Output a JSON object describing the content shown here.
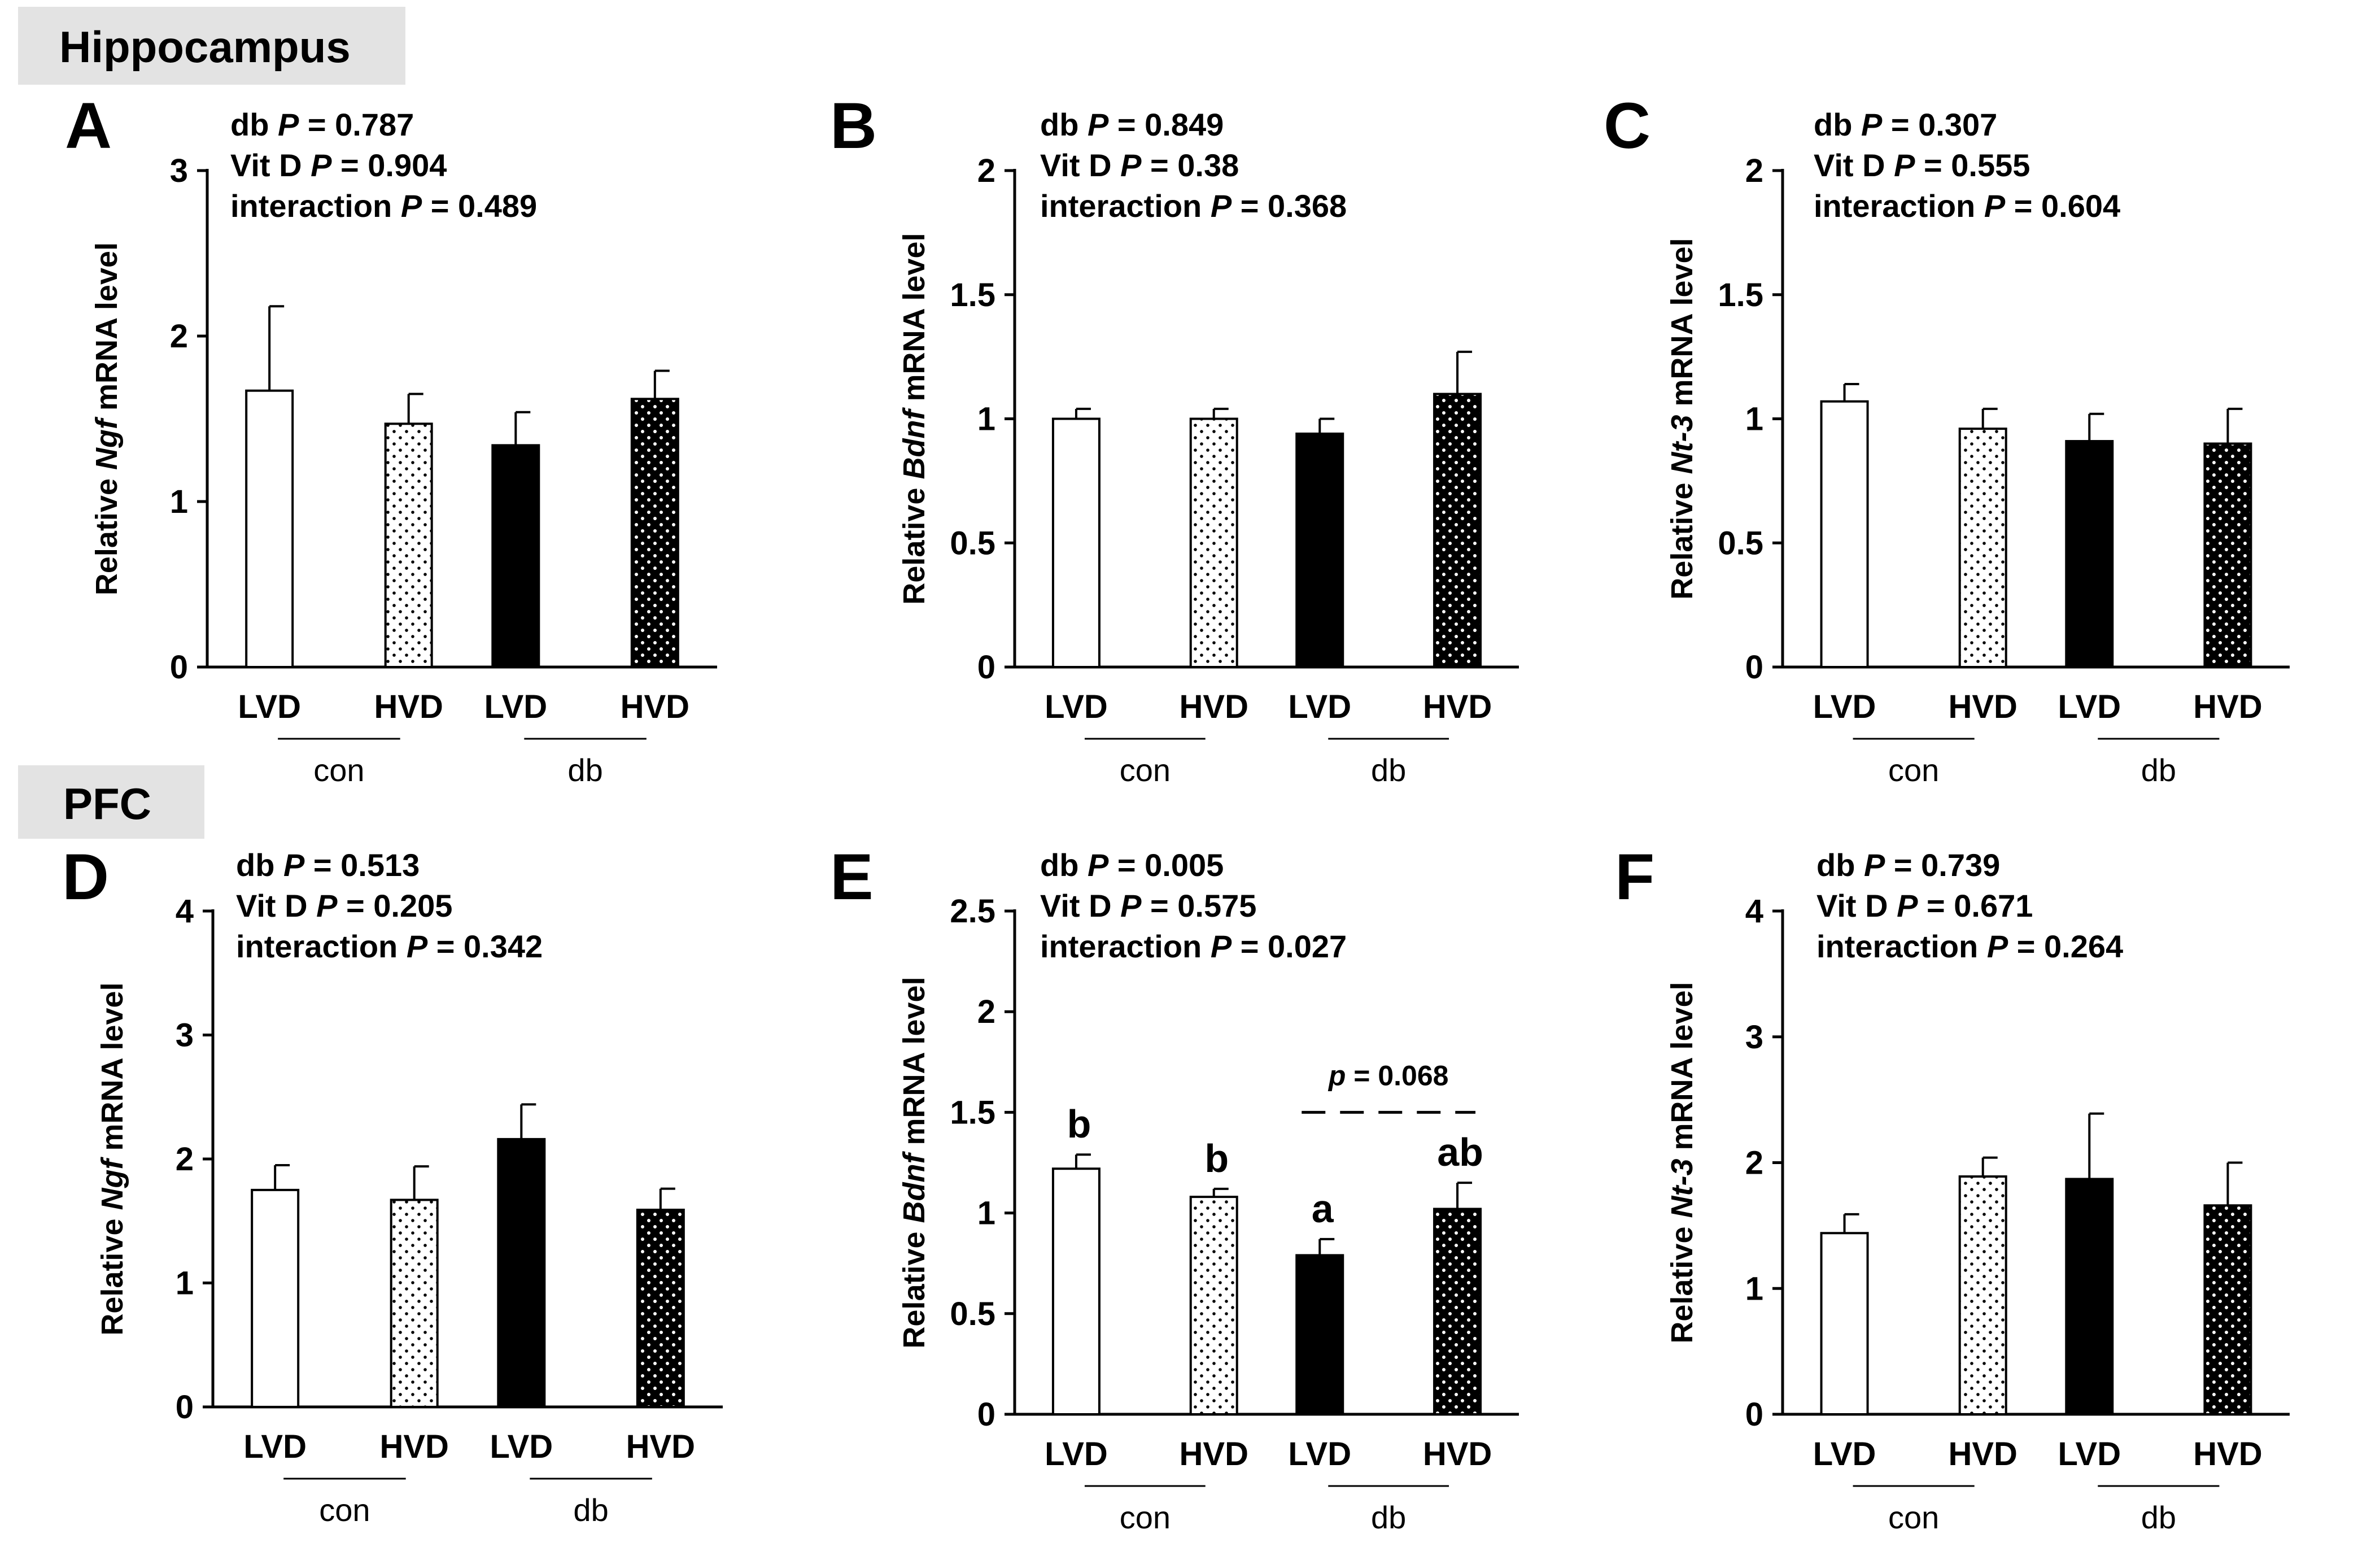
{
  "sections": [
    {
      "id": "hippocampus",
      "label": "Hippocampus"
    },
    {
      "id": "pfc",
      "label": "PFC"
    }
  ],
  "colors": {
    "lvd": "#ffffff",
    "hvd_con": "#ffffff",
    "db_lvd": "#000000",
    "db_hvd": "#000000",
    "axis": "#000000"
  },
  "chart_data": [
    {
      "panel": "A",
      "type": "bar",
      "section": "Hippocampus",
      "ylabel_pre": "Relative ",
      "ylabel_gene": "Ngf",
      "ylabel_post": " mRNA level",
      "ylim": [
        0,
        3
      ],
      "yticks": [
        0,
        1,
        2,
        3
      ],
      "ytick_labels": [
        "0",
        "1",
        "2",
        "3"
      ],
      "categories": [
        "LVD",
        "HVD",
        "LVD",
        "HVD"
      ],
      "groups": [
        {
          "label": "con",
          "members": [
            0,
            1
          ]
        },
        {
          "label": "db",
          "members": [
            2,
            3
          ]
        }
      ],
      "values": [
        1.67,
        1.47,
        1.34,
        1.62
      ],
      "errors": [
        0.51,
        0.18,
        0.2,
        0.17
      ],
      "stats": [
        {
          "pre": "db ",
          "p": "P",
          "post": " = 0.787"
        },
        {
          "pre": "Vit D ",
          "p": "P",
          "post": " = 0.904"
        },
        {
          "pre": "interaction ",
          "p": "P",
          "post": " = 0.489"
        }
      ],
      "letters": [],
      "comparison": null
    },
    {
      "panel": "B",
      "type": "bar",
      "section": "Hippocampus",
      "ylabel_pre": "Relative ",
      "ylabel_gene": "Bdnf",
      "ylabel_post": " mRNA level",
      "ylim": [
        0,
        2
      ],
      "yticks": [
        0,
        0.5,
        1,
        1.5,
        2
      ],
      "ytick_labels": [
        "0",
        "0.5",
        "1",
        "1.5",
        "2"
      ],
      "categories": [
        "LVD",
        "HVD",
        "LVD",
        "HVD"
      ],
      "groups": [
        {
          "label": "con",
          "members": [
            0,
            1
          ]
        },
        {
          "label": "db",
          "members": [
            2,
            3
          ]
        }
      ],
      "values": [
        1.0,
        1.0,
        0.94,
        1.1
      ],
      "errors": [
        0.04,
        0.04,
        0.06,
        0.17
      ],
      "stats": [
        {
          "pre": "db ",
          "p": "P",
          "post": " = 0.849"
        },
        {
          "pre": "Vit D ",
          "p": "P",
          "post": " = 0.38"
        },
        {
          "pre": "interaction ",
          "p": "P",
          "post": " = 0.368"
        }
      ],
      "letters": [],
      "comparison": null
    },
    {
      "panel": "C",
      "type": "bar",
      "section": "Hippocampus",
      "ylabel_pre": "Relative ",
      "ylabel_gene": "Nt-3",
      "ylabel_post": " mRNA level",
      "ylim": [
        0,
        2
      ],
      "yticks": [
        0,
        0.5,
        1,
        1.5,
        2
      ],
      "ytick_labels": [
        "0",
        "0.5",
        "1",
        "1.5",
        "2"
      ],
      "categories": [
        "LVD",
        "HVD",
        "LVD",
        "HVD"
      ],
      "groups": [
        {
          "label": "con",
          "members": [
            0,
            1
          ]
        },
        {
          "label": "db",
          "members": [
            2,
            3
          ]
        }
      ],
      "values": [
        1.07,
        0.96,
        0.91,
        0.9
      ],
      "errors": [
        0.07,
        0.08,
        0.11,
        0.14
      ],
      "stats": [
        {
          "pre": "db ",
          "p": "P",
          "post": " = 0.307"
        },
        {
          "pre": "Vit D ",
          "p": "P",
          "post": " = 0.555"
        },
        {
          "pre": "interaction ",
          "p": "P",
          "post": " = 0.604"
        }
      ],
      "letters": [],
      "comparison": null
    },
    {
      "panel": "D",
      "type": "bar",
      "section": "PFC",
      "ylabel_pre": "Relative ",
      "ylabel_gene": "Ngf",
      "ylabel_post": " mRNA level",
      "ylim": [
        0,
        4
      ],
      "yticks": [
        0,
        1,
        2,
        3,
        4
      ],
      "ytick_labels": [
        "0",
        "1",
        "2",
        "3",
        "4"
      ],
      "categories": [
        "LVD",
        "HVD",
        "LVD",
        "HVD"
      ],
      "groups": [
        {
          "label": "con",
          "members": [
            0,
            1
          ]
        },
        {
          "label": "db",
          "members": [
            2,
            3
          ]
        }
      ],
      "values": [
        1.75,
        1.67,
        2.16,
        1.59
      ],
      "errors": [
        0.2,
        0.27,
        0.28,
        0.17
      ],
      "stats": [
        {
          "pre": "db ",
          "p": "P",
          "post": " = 0.513"
        },
        {
          "pre": "Vit D ",
          "p": "P",
          "post": " = 0.205"
        },
        {
          "pre": "interaction ",
          "p": "P",
          "post": " = 0.342"
        }
      ],
      "letters": [],
      "comparison": null
    },
    {
      "panel": "E",
      "type": "bar",
      "section": "PFC",
      "ylabel_pre": "Relative ",
      "ylabel_gene": "Bdnf",
      "ylabel_post": " mRNA level",
      "ylim": [
        0,
        2.5
      ],
      "yticks": [
        0,
        0.5,
        1,
        1.5,
        2,
        2.5
      ],
      "ytick_labels": [
        "0",
        "0.5",
        "1",
        "1.5",
        "2",
        "2.5"
      ],
      "categories": [
        "LVD",
        "HVD",
        "LVD",
        "HVD"
      ],
      "groups": [
        {
          "label": "con",
          "members": [
            0,
            1
          ]
        },
        {
          "label": "db",
          "members": [
            2,
            3
          ]
        }
      ],
      "values": [
        1.22,
        1.08,
        0.79,
        1.02
      ],
      "errors": [
        0.07,
        0.04,
        0.08,
        0.13
      ],
      "stats": [
        {
          "pre": "db ",
          "p": "P",
          "post": " = 0.005"
        },
        {
          "pre": "Vit D ",
          "p": "P",
          "post": " = 0.575"
        },
        {
          "pre": "interaction ",
          "p": "P",
          "post": " = 0.027"
        }
      ],
      "letters": [
        "b",
        "b",
        "a",
        "ab"
      ],
      "comparison": {
        "between": [
          2,
          3
        ],
        "p": "p",
        "post": " = 0.068",
        "level": 1.5
      }
    },
    {
      "panel": "F",
      "type": "bar",
      "section": "PFC",
      "ylabel_pre": "Relative ",
      "ylabel_gene": "Nt-3",
      "ylabel_post": " mRNA level",
      "ylim": [
        0,
        4
      ],
      "yticks": [
        0,
        1,
        2,
        3,
        4
      ],
      "ytick_labels": [
        "0",
        "1",
        "2",
        "3",
        "4"
      ],
      "categories": [
        "LVD",
        "HVD",
        "LVD",
        "HVD"
      ],
      "groups": [
        {
          "label": "con",
          "members": [
            0,
            1
          ]
        },
        {
          "label": "db",
          "members": [
            2,
            3
          ]
        }
      ],
      "values": [
        1.44,
        1.89,
        1.87,
        1.66
      ],
      "errors": [
        0.15,
        0.15,
        0.52,
        0.34
      ],
      "stats": [
        {
          "pre": "db ",
          "p": "P",
          "post": " = 0.739"
        },
        {
          "pre": "Vit D ",
          "p": "P",
          "post": " = 0.671"
        },
        {
          "pre": "interaction ",
          "p": "P",
          "post": " = 0.264"
        }
      ],
      "letters": [],
      "comparison": null
    }
  ]
}
